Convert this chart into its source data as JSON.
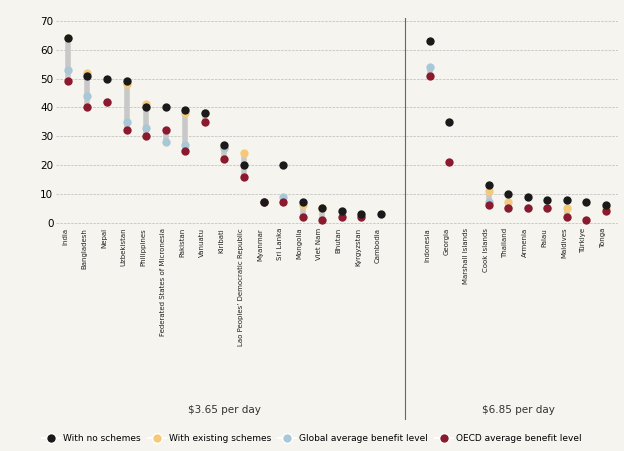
{
  "countries_365": [
    "India",
    "Bangladesh",
    "Nepal",
    "Uzbekistan",
    "Philippines",
    "Federated States of Micronesia",
    "Pakistan",
    "Vanuatu",
    "Kiribati",
    "Lao Peoples’ Democratic Republic",
    "Myanmar",
    "Sri Lanka",
    "Mongolia",
    "Viet Nam",
    "Bhutan",
    "Kyrgyzstan",
    "Cambodia"
  ],
  "no_scheme_365": [
    64,
    51,
    50,
    49,
    40,
    40,
    39,
    38,
    27,
    20,
    7,
    20,
    7,
    5,
    4,
    3,
    3
  ],
  "existing_365": [
    64,
    52,
    null,
    48,
    41,
    null,
    38,
    38,
    26,
    24,
    null,
    null,
    6,
    5,
    null,
    null,
    null
  ],
  "global_365": [
    53,
    44,
    42,
    35,
    33,
    28,
    27,
    null,
    26,
    null,
    null,
    9,
    null,
    null,
    null,
    null,
    null
  ],
  "oecd_365": [
    49,
    40,
    42,
    32,
    30,
    32,
    25,
    35,
    22,
    16,
    7,
    7,
    2,
    1,
    2,
    2,
    null
  ],
  "countries_685": [
    "Indonesia",
    "Georgia",
    "Marshall Islands",
    "Cook Islands",
    "Thailand",
    "Armenia",
    "Palau",
    "Maldives",
    "Türkiye",
    "Tonga"
  ],
  "no_scheme_685": [
    63,
    35,
    null,
    13,
    10,
    9,
    8,
    8,
    7,
    6
  ],
  "existing_685": [
    null,
    null,
    null,
    11,
    7,
    null,
    null,
    5,
    null,
    5
  ],
  "global_685": [
    54,
    null,
    null,
    7,
    5,
    5,
    5,
    null,
    null,
    null
  ],
  "oecd_685": [
    51,
    21,
    null,
    6,
    5,
    5,
    5,
    2,
    1,
    4
  ],
  "group1_label": "$3.65 per day",
  "group2_label": "$6.85 per day",
  "color_no_scheme": "#1a1a1a",
  "color_existing": "#f5c97a",
  "color_global": "#a8c8d8",
  "color_oecd": "#8b1a2e",
  "ylabel_max": 70,
  "ylabel_step": 10,
  "bg_color": "#f5f4ee",
  "legend_labels": [
    "With no schemes",
    "With existing schemes",
    "Global average benefit level",
    "OECD average benefit level"
  ],
  "connector_color": "#c8c8c8",
  "sep_color": "#666666"
}
